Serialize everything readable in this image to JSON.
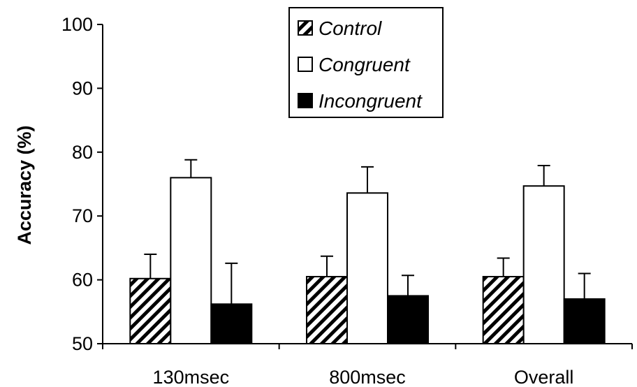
{
  "chart_data": {
    "type": "bar",
    "categories": [
      "130msec",
      "800msec",
      "Overall"
    ],
    "series": [
      {
        "name": "Control",
        "values": [
          60.2,
          60.5,
          60.5
        ],
        "errors": [
          3.8,
          3.2,
          2.9
        ],
        "fill": "hatch"
      },
      {
        "name": "Congruent",
        "values": [
          76.0,
          73.6,
          74.7
        ],
        "errors": [
          2.8,
          4.1,
          3.2
        ],
        "fill": "#ffffff"
      },
      {
        "name": "Incongruent",
        "values": [
          56.2,
          57.5,
          57.0
        ],
        "errors": [
          6.4,
          3.2,
          4.0
        ],
        "fill": "#000000"
      }
    ],
    "ylabel": "Accuracy (%)",
    "ylim": [
      50,
      100
    ],
    "yticks": [
      "50",
      "60",
      "70",
      "80",
      "90",
      "100"
    ],
    "legend_position": "top-center",
    "grid": false
  }
}
